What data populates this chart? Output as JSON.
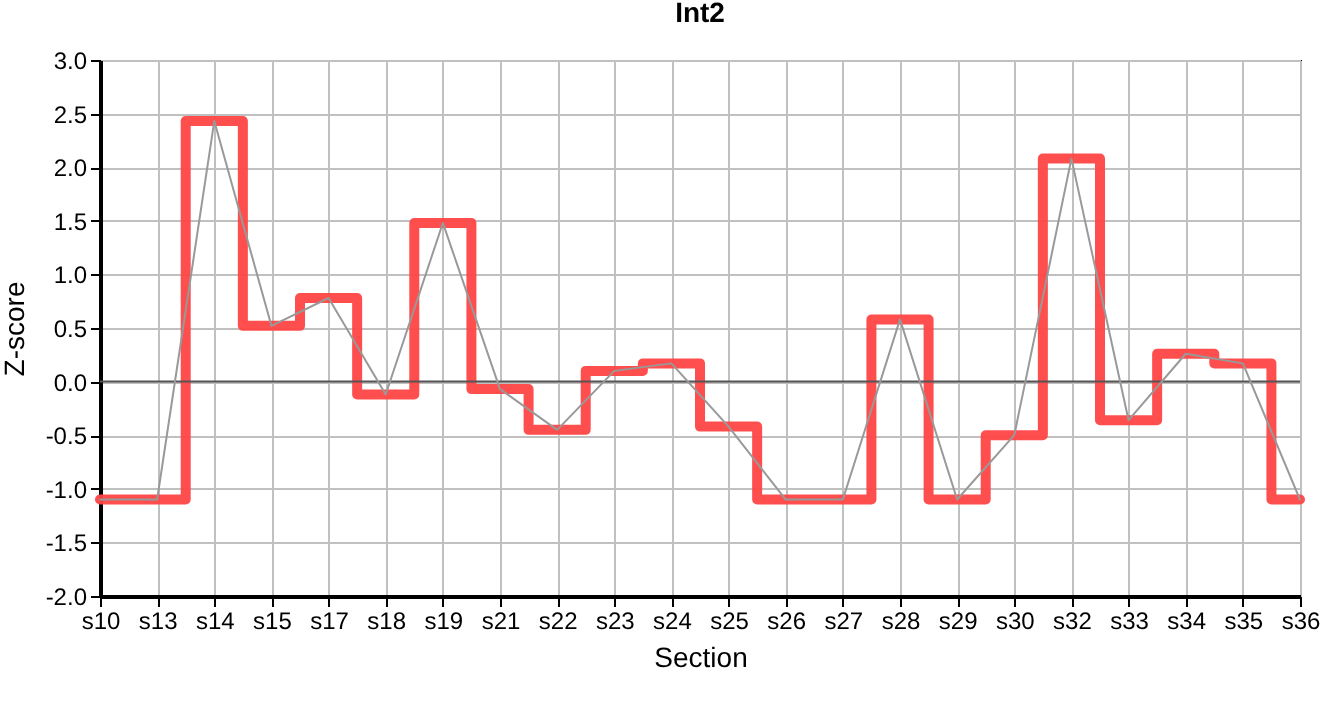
{
  "chart_data": {
    "type": "step",
    "title": "Int2",
    "xlabel": "Section",
    "ylabel": "Z-score",
    "categories": [
      "s10",
      "s13",
      "s14",
      "s15",
      "s17",
      "s18",
      "s19",
      "s21",
      "s22",
      "s23",
      "s24",
      "s25",
      "s26",
      "s27",
      "s28",
      "s29",
      "s30",
      "s32",
      "s33",
      "s34",
      "s35",
      "s36"
    ],
    "series": [
      {
        "type": "step",
        "color": "#ff4444",
        "values": [
          -1.1,
          -1.1,
          2.43,
          0.52,
          0.78,
          -0.12,
          1.48,
          -0.07,
          -0.45,
          0.1,
          0.17,
          -0.42,
          -1.1,
          -1.1,
          0.58,
          -1.1,
          -0.5,
          2.08,
          -0.36,
          0.26,
          0.17,
          -1.1
        ]
      },
      {
        "type": "line",
        "color": "#999999",
        "values": [
          -1.1,
          -1.1,
          2.43,
          0.52,
          0.78,
          -0.12,
          1.48,
          -0.07,
          -0.45,
          0.1,
          0.17,
          -0.42,
          -1.1,
          -1.1,
          0.58,
          -1.1,
          -0.5,
          2.08,
          -0.36,
          0.26,
          0.17,
          -1.1
        ]
      }
    ],
    "ylim": [
      -2,
      3
    ],
    "yticks": [
      {
        "value": -2,
        "label": "-2.0"
      },
      -1.5,
      {
        "value": -1,
        "label": "-1.0"
      },
      -0.5,
      {
        "value": 0,
        "label": "0.0"
      },
      0.5,
      {
        "value": 1,
        "label": "1.0"
      },
      1.5,
      {
        "value": 2,
        "label": "2.0"
      },
      2.5,
      {
        "value": 3,
        "label": "3.0"
      }
    ],
    "ref_lines": [
      {
        "axis": "y",
        "value": 0,
        "color": "#555555"
      }
    ],
    "grid": true,
    "marker": "none",
    "line_style": "solid"
  }
}
